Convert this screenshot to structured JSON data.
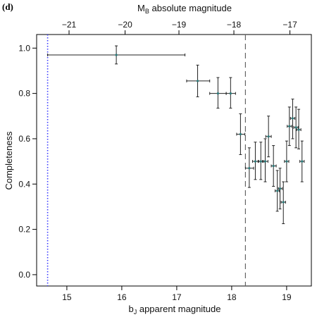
{
  "chart_data": {
    "type": "scatter",
    "panel_label": "(d)",
    "xlabel": {
      "prefix": "b",
      "sub": "J",
      "rest": " apparent magnitude"
    },
    "ylabel": "Completeness",
    "top_axis_label": {
      "prefix": "M",
      "sub": "B",
      "rest": " absolute magnitude"
    },
    "xlim": [
      14.45,
      19.45
    ],
    "ylim": [
      -0.05,
      1.06
    ],
    "x_ticks": [
      15,
      16,
      17,
      18,
      19
    ],
    "y_ticks": [
      0.0,
      0.2,
      0.4,
      0.6,
      0.8,
      1.0
    ],
    "y_tick_labels": [
      "0.0",
      "0.2",
      "0.4",
      "0.6",
      "0.8",
      "1.0"
    ],
    "top_ticks": [
      {
        "label": "−21",
        "x": 15.04
      },
      {
        "label": "−20",
        "x": 16.06
      },
      {
        "label": "−19",
        "x": 17.04
      },
      {
        "label": "−18",
        "x": 18.04
      },
      {
        "label": "−17",
        "x": 19.06
      }
    ],
    "vlines": [
      {
        "x": 14.65,
        "style": "dotted",
        "color": "#3a3aff"
      },
      {
        "x": 18.25,
        "style": "dashed",
        "color": "#666666"
      }
    ],
    "points": [
      {
        "x": 15.9,
        "xerr_lo": 14.65,
        "xerr_hi": 17.15,
        "y": 0.97,
        "y_lo": 0.93,
        "y_hi": 1.01
      },
      {
        "x": 17.38,
        "xerr_lo": 17.18,
        "xerr_hi": 17.6,
        "y": 0.855,
        "y_lo": 0.785,
        "y_hi": 0.925
      },
      {
        "x": 17.75,
        "xerr_lo": 17.6,
        "xerr_hi": 17.9,
        "y": 0.8,
        "y_lo": 0.735,
        "y_hi": 0.87
      },
      {
        "x": 17.98,
        "xerr_lo": 17.9,
        "xerr_hi": 18.07,
        "y": 0.8,
        "y_lo": 0.735,
        "y_hi": 0.87
      },
      {
        "x": 18.16,
        "xerr_lo": 18.09,
        "xerr_hi": 18.24,
        "y": 0.62,
        "y_lo": 0.53,
        "y_hi": 0.71
      },
      {
        "x": 18.32,
        "xerr_lo": 18.25,
        "xerr_hi": 18.4,
        "y": 0.47,
        "y_lo": 0.385,
        "y_hi": 0.56
      },
      {
        "x": 18.43,
        "xerr_lo": 18.38,
        "xerr_hi": 18.49,
        "y": 0.5,
        "y_lo": 0.42,
        "y_hi": 0.585
      },
      {
        "x": 18.53,
        "xerr_lo": 18.48,
        "xerr_hi": 18.58,
        "y": 0.5,
        "y_lo": 0.42,
        "y_hi": 0.585
      },
      {
        "x": 18.61,
        "xerr_lo": 18.56,
        "xerr_hi": 18.66,
        "y": 0.5,
        "y_lo": 0.41,
        "y_hi": 0.6
      },
      {
        "x": 18.67,
        "xerr_lo": 18.62,
        "xerr_hi": 18.72,
        "y": 0.61,
        "y_lo": 0.52,
        "y_hi": 0.7
      },
      {
        "x": 18.76,
        "xerr_lo": 18.72,
        "xerr_hi": 18.81,
        "y": 0.48,
        "y_lo": 0.39,
        "y_hi": 0.57
      },
      {
        "x": 18.83,
        "xerr_lo": 18.79,
        "xerr_hi": 18.87,
        "y": 0.37,
        "y_lo": 0.28,
        "y_hi": 0.46
      },
      {
        "x": 18.88,
        "xerr_lo": 18.85,
        "xerr_hi": 18.92,
        "y": 0.38,
        "y_lo": 0.29,
        "y_hi": 0.47
      },
      {
        "x": 18.94,
        "xerr_lo": 18.9,
        "xerr_hi": 18.98,
        "y": 0.32,
        "y_lo": 0.225,
        "y_hi": 0.41
      },
      {
        "x": 19.0,
        "xerr_lo": 18.96,
        "xerr_hi": 19.04,
        "y": 0.5,
        "y_lo": 0.41,
        "y_hi": 0.59
      },
      {
        "x": 19.05,
        "xerr_lo": 19.01,
        "xerr_hi": 19.09,
        "y": 0.655,
        "y_lo": 0.57,
        "y_hi": 0.74
      },
      {
        "x": 19.11,
        "xerr_lo": 19.07,
        "xerr_hi": 19.15,
        "y": 0.69,
        "y_lo": 0.6,
        "y_hi": 0.775
      },
      {
        "x": 19.17,
        "xerr_lo": 19.13,
        "xerr_hi": 19.21,
        "y": 0.65,
        "y_lo": 0.56,
        "y_hi": 0.74
      },
      {
        "x": 19.22,
        "xerr_lo": 19.18,
        "xerr_hi": 19.26,
        "y": 0.64,
        "y_lo": 0.555,
        "y_hi": 0.73
      },
      {
        "x": 19.28,
        "xerr_lo": 19.24,
        "xerr_hi": 19.32,
        "y": 0.5,
        "y_lo": 0.41,
        "y_hi": 0.59
      }
    ],
    "marker_color": "#2d7a7a",
    "errorbar_color": "#222222",
    "grid": false
  }
}
